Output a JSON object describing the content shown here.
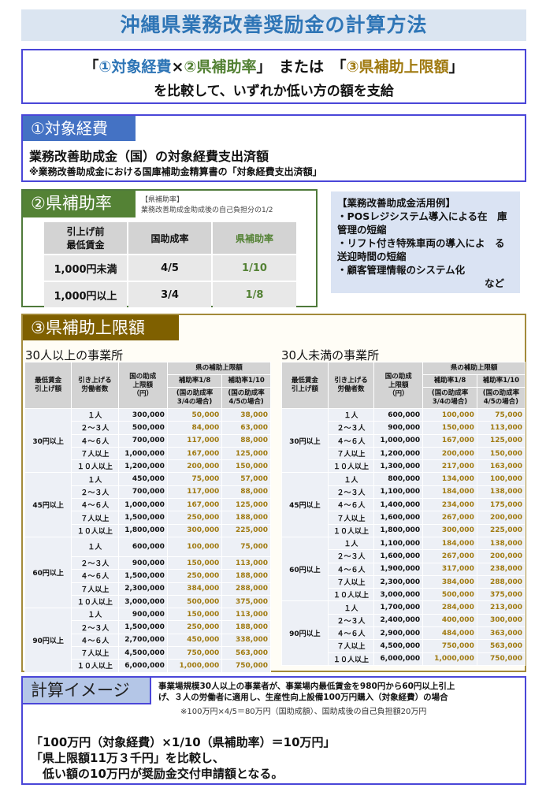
{
  "title": "沖縄県業務改善奨励金の計算方法",
  "compare": {
    "open1": "「",
    "item1": "①対象経費",
    "times": "×",
    "item2": "②県補助率",
    "close1": "」",
    "or": "　または　",
    "open2": "「",
    "item3": "③県補助上限額",
    "close2": "」",
    "line2": "を比較して、いずれか低い方の額を支給"
  },
  "section1": {
    "tab": "①対象経費",
    "main": "業務改善助成金（国）の対象経費支出済額",
    "note": "※業務改善助成金における国庫補助金精算書の「対象経費支出済額」"
  },
  "section2": {
    "tab": "②県補助率",
    "note1": "【県補助率】",
    "note2": "業務改善助成金助成後の自己負担分の1/2",
    "headers": [
      "引上げ前\n最低賃金",
      "国助成率",
      "県補助率"
    ],
    "rows": [
      [
        "1,000円未満",
        "4/5",
        "1/10"
      ],
      [
        "1,000円以上",
        "3/4",
        "1/8"
      ]
    ]
  },
  "examples": {
    "title": "【業務改善助成金活用例】",
    "items": [
      "・POSレジシステム導入による在　庫管理の短縮",
      "・リフト付き特殊車両の導入によ　る送迎時間の短縮",
      "・顧客管理情報のシステム化"
    ],
    "etc": "など"
  },
  "section3": {
    "tab": "③県補助上限額",
    "headers": {
      "wage": "最低賃金\n引上げ額",
      "workers": "引き上げる\n労働者数",
      "nat": "国の助成\n上限額\n（円）",
      "pref": "県の補助上限額",
      "r8": "補助率1/8",
      "r10": "補助率1/10",
      "r8n": "(国の助成率\n3/4の場合)",
      "r10n": "(国の助成率\n4/5の場合)"
    },
    "workers": [
      "１人",
      "２～３人",
      "４～６人",
      "７人以上",
      "１０人以上"
    ],
    "tables": [
      {
        "title": "30人以上の事業所",
        "groups": [
          {
            "wage": "30円以上",
            "rows": [
              [
                "300,000",
                "50,000",
                "38,000"
              ],
              [
                "500,000",
                "84,000",
                "63,000"
              ],
              [
                "700,000",
                "117,000",
                "88,000"
              ],
              [
                "1,000,000",
                "167,000",
                "125,000"
              ],
              [
                "1,200,000",
                "200,000",
                "150,000"
              ]
            ]
          },
          {
            "wage": "45円以上",
            "rows": [
              [
                "450,000",
                "75,000",
                "57,000"
              ],
              [
                "700,000",
                "117,000",
                "88,000"
              ],
              [
                "1,000,000",
                "167,000",
                "125,000"
              ],
              [
                "1,500,000",
                "250,000",
                "188,000"
              ],
              [
                "1,800,000",
                "300,000",
                "225,000"
              ]
            ]
          },
          {
            "wage": "60円以上",
            "rows": [
              [
                "600,000",
                "100,000",
                "75,000"
              ],
              [
                "900,000",
                "150,000",
                "113,000"
              ],
              [
                "1,500,000",
                "250,000",
                "188,000"
              ],
              [
                "2,300,000",
                "384,000",
                "288,000"
              ],
              [
                "3,000,000",
                "500,000",
                "375,000"
              ]
            ]
          },
          {
            "wage": "90円以上",
            "rows": [
              [
                "900,000",
                "150,000",
                "113,000"
              ],
              [
                "1,500,000",
                "250,000",
                "188,000"
              ],
              [
                "2,700,000",
                "450,000",
                "338,000"
              ],
              [
                "4,500,000",
                "750,000",
                "563,000"
              ],
              [
                "6,000,000",
                "1,000,000",
                "750,000"
              ]
            ]
          }
        ]
      },
      {
        "title": "30人未満の事業所",
        "groups": [
          {
            "wage": "30円以上",
            "rows": [
              [
                "600,000",
                "100,000",
                "75,000"
              ],
              [
                "900,000",
                "150,000",
                "113,000"
              ],
              [
                "1,000,000",
                "167,000",
                "125,000"
              ],
              [
                "1,200,000",
                "200,000",
                "150,000"
              ],
              [
                "1,300,000",
                "217,000",
                "163,000"
              ]
            ]
          },
          {
            "wage": "45円以上",
            "rows": [
              [
                "800,000",
                "134,000",
                "100,000"
              ],
              [
                "1,100,000",
                "184,000",
                "138,000"
              ],
              [
                "1,400,000",
                "234,000",
                "175,000"
              ],
              [
                "1,600,000",
                "267,000",
                "200,000"
              ],
              [
                "1,800,000",
                "300,000",
                "225,000"
              ]
            ]
          },
          {
            "wage": "60円以上",
            "rows": [
              [
                "1,100,000",
                "184,000",
                "138,000"
              ],
              [
                "1,600,000",
                "267,000",
                "200,000"
              ],
              [
                "1,900,000",
                "317,000",
                "238,000"
              ],
              [
                "2,300,000",
                "384,000",
                "288,000"
              ],
              [
                "3,000,000",
                "500,000",
                "375,000"
              ]
            ]
          },
          {
            "wage": "90円以上",
            "rows": [
              [
                "1,700,000",
                "284,000",
                "213,000"
              ],
              [
                "2,400,000",
                "400,000",
                "300,000"
              ],
              [
                "2,900,000",
                "484,000",
                "363,000"
              ],
              [
                "4,500,000",
                "750,000",
                "563,000"
              ],
              [
                "6,000,000",
                "1,000,000",
                "750,000"
              ]
            ]
          }
        ]
      }
    ]
  },
  "calc": {
    "tab": "計算イメージ",
    "desc1": "事業場規模30人以上の事業者が、事業場内最低賃金を980円から60円以上引上",
    "desc2": "げ、３人の労働者に適用し、生産性向上設備100万円購入（対象経費）の場合",
    "desc3": "※100万円×4/5＝80万円（国助成額）、国助成後の自己負担額20万円",
    "res1": "「100万円（対象経費）×1/10（県補助率）＝10万円」",
    "res2": "「県上限額11万３千円」を比較し、",
    "res3": "　低い額の10万円が奨励金交付申請額となる。"
  }
}
